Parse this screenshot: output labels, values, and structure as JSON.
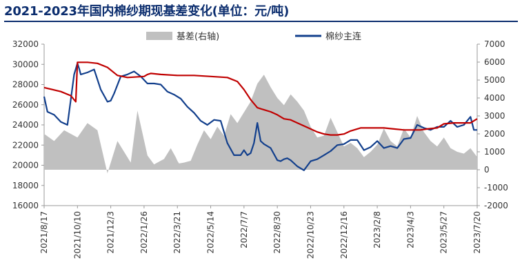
{
  "page": {
    "title": "2021-2023年国内棉纱期现基差变化(单位：元/吨)"
  },
  "chart_data": {
    "type": "line",
    "title": "2021-2023年国内棉纱期现基差变化(单位：元/吨)",
    "x_tick_labels": [
      "2021/8/17",
      "2021/10/10",
      "2021/12/3",
      "2022/1/26",
      "2022/3/21",
      "2022/5/14",
      "2022/7/7",
      "2022/8/30",
      "2022/10/23",
      "2022/12/16",
      "2023/2/8",
      "2023/4/3",
      "2023/5/27",
      "2023/7/20"
    ],
    "y_left": {
      "ticks": [
        16000,
        18000,
        20000,
        22000,
        24000,
        26000,
        28000,
        30000,
        32000
      ],
      "range": [
        16000,
        32000
      ]
    },
    "y_right": {
      "ticks": [
        -2000,
        -1000,
        0,
        1000,
        2000,
        3000,
        4000,
        5000,
        6000,
        7000
      ],
      "range": [
        -2000,
        7000
      ]
    },
    "legend": {
      "position": "top-center"
    },
    "colors": {
      "basis": "#c0c0c0",
      "futures": "#123f8c",
      "spot": "#c00000"
    },
    "series": [
      {
        "name": "基差(右轴)",
        "kind": "area",
        "axis": "right",
        "x": [
          0,
          0.3,
          0.6,
          1,
          1.3,
          1.6,
          1.9,
          2.2,
          2.6,
          2.8,
          3.1,
          3.3,
          3.6,
          3.8,
          3.95,
          4.0,
          4.05,
          4.2,
          4.4,
          4.6,
          4.8,
          5.0,
          5.2,
          5.4,
          5.6,
          5.8,
          6.0,
          6.2,
          6.4,
          6.6,
          6.8,
          7.0,
          7.2,
          7.4,
          7.6,
          7.8,
          8.0,
          8.2,
          8.4,
          8.6,
          8.8,
          9.0,
          9.2,
          9.4,
          9.6,
          9.8,
          10.0,
          10.2,
          10.4,
          10.6,
          10.8,
          11.0,
          11.2,
          11.4,
          11.6,
          11.8,
          12.0,
          12.2,
          12.4,
          12.6,
          12.8,
          13.0
        ],
        "values": [
          2000,
          1600,
          2200,
          1800,
          2600,
          2200,
          -200,
          1600,
          400,
          3300,
          800,
          300,
          600,
          1200,
          700,
          500,
          350,
          400,
          500,
          1400,
          2200,
          1700,
          2400,
          1900,
          3100,
          2600,
          3200,
          3800,
          4800,
          5300,
          4600,
          4000,
          3600,
          4200,
          3800,
          3300,
          2400,
          1800,
          1900,
          2900,
          2100,
          1300,
          1500,
          1200,
          700,
          1000,
          1400,
          2300,
          1600,
          1300,
          2300,
          1800,
          3000,
          2100,
          1600,
          1300,
          1800,
          1200,
          1000,
          900,
          1200,
          700
        ]
      },
      {
        "name": "棉纱主连",
        "kind": "line",
        "axis": "left",
        "x": [
          0,
          0.1,
          0.3,
          0.5,
          0.7,
          0.9,
          1.0,
          1.05,
          1.1,
          1.3,
          1.5,
          1.7,
          1.9,
          2.0,
          2.1,
          2.3,
          2.5,
          2.7,
          2.9,
          3.1,
          3.3,
          3.5,
          3.7,
          3.9,
          4.1,
          4.3,
          4.5,
          4.7,
          4.9,
          5.1,
          5.3,
          5.5,
          5.7,
          5.9,
          6.0,
          6.1,
          6.2,
          6.3,
          6.4,
          6.5,
          6.6,
          6.8,
          7.0,
          7.1,
          7.2,
          7.3,
          7.4,
          7.6,
          7.8,
          8.0,
          8.2,
          8.4,
          8.6,
          8.8,
          9.0,
          9.2,
          9.4,
          9.6,
          9.8,
          10.0,
          10.2,
          10.4,
          10.6,
          10.8,
          11.0,
          11.2,
          11.4,
          11.6,
          11.8,
          12.0,
          12.2,
          12.4,
          12.6,
          12.8,
          12.9,
          13.0
        ],
        "values": [
          26800,
          25300,
          25000,
          24300,
          24000,
          29000,
          30100,
          29600,
          29000,
          29200,
          29500,
          27500,
          26300,
          26400,
          27100,
          28800,
          29000,
          29300,
          28800,
          28100,
          28100,
          28000,
          27300,
          27000,
          26600,
          25800,
          25200,
          24400,
          24000,
          24500,
          24400,
          22200,
          21000,
          21000,
          21500,
          21000,
          21200,
          22200,
          24200,
          22400,
          22100,
          21700,
          20500,
          20400,
          20600,
          20700,
          20500,
          19900,
          19500,
          20400,
          20600,
          21000,
          21400,
          22000,
          22100,
          22500,
          22500,
          21500,
          21800,
          22400,
          21700,
          21900,
          21700,
          22600,
          22700,
          24000,
          23700,
          23500,
          23800,
          23800,
          24400,
          23800,
          24000,
          24800,
          23500,
          23500
        ]
      },
      {
        "name": "",
        "kind": "line",
        "axis": "left",
        "x": [
          0,
          0.5,
          0.8,
          0.95,
          1.0,
          1.05,
          1.3,
          1.6,
          1.9,
          2.2,
          2.5,
          3.0,
          3.1,
          3.2,
          3.5,
          4.0,
          4.5,
          5.0,
          5.5,
          5.8,
          6.0,
          6.2,
          6.4,
          6.6,
          6.8,
          7.0,
          7.2,
          7.4,
          7.6,
          7.8,
          8.0,
          8.2,
          8.4,
          8.6,
          8.8,
          9.0,
          9.2,
          9.5,
          9.8,
          10.0,
          10.2,
          10.5,
          10.8,
          11.0,
          11.3,
          11.5,
          11.8,
          12.0,
          12.3,
          12.5,
          12.8,
          13.0
        ],
        "values": [
          27700,
          27300,
          26900,
          26300,
          30200,
          30200,
          30200,
          30100,
          29700,
          28900,
          28700,
          28800,
          29000,
          29100,
          29000,
          28900,
          28900,
          28800,
          28700,
          28300,
          27500,
          26500,
          25700,
          25500,
          25300,
          25000,
          24600,
          24500,
          24200,
          23900,
          23600,
          23300,
          23100,
          23000,
          23000,
          23100,
          23400,
          23700,
          23700,
          23700,
          23700,
          23600,
          23500,
          23500,
          23500,
          23600,
          23700,
          24100,
          24200,
          24200,
          24200,
          24600
        ]
      }
    ]
  }
}
